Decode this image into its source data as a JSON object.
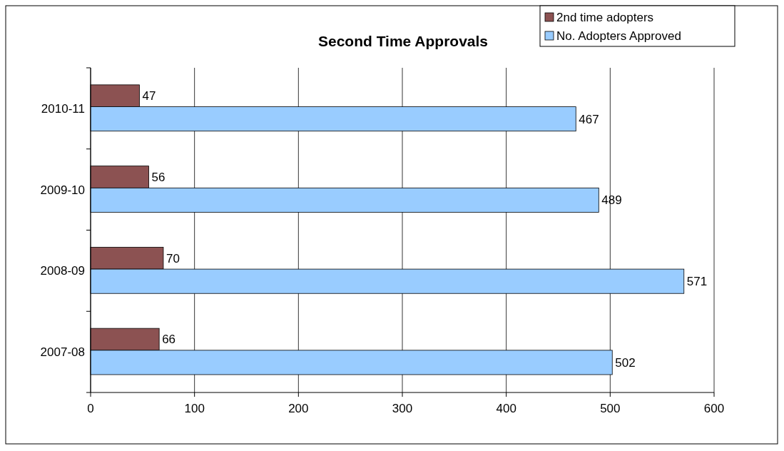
{
  "chart_data": {
    "type": "bar",
    "orientation": "horizontal",
    "title": "Second Time Approvals",
    "categories": [
      "2010-11",
      "2009-10",
      "2008-09",
      "2007-08"
    ],
    "series": [
      {
        "name": "2nd time adopters",
        "color": "#8c5252",
        "values": [
          47,
          56,
          70,
          66
        ]
      },
      {
        "name": "No. Adopters Approved",
        "color": "#99ccff",
        "values": [
          467,
          489,
          571,
          502
        ]
      }
    ],
    "xlim": [
      0,
      600
    ],
    "xticks": [
      0,
      100,
      200,
      300,
      400,
      500,
      600
    ],
    "grid": "x",
    "legend": "top right",
    "data_labels": true
  }
}
